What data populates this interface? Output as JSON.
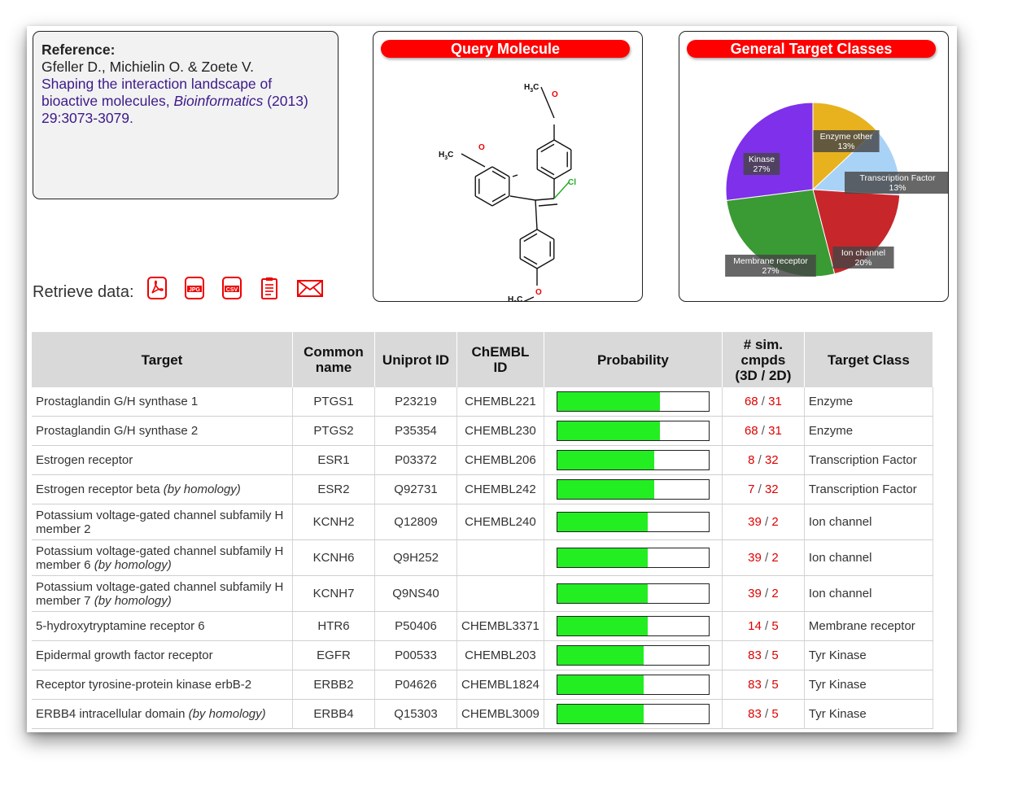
{
  "reference": {
    "heading": "Reference:",
    "authors": "Gfeller D., Michielin O. & Zoete V.",
    "title": "Shaping the interaction landscape of bioactive molecules,",
    "journal": "Bioinformatics",
    "year": "(2013)",
    "pages": "29:3073-3079."
  },
  "query_molecule": {
    "title": "Query Molecule",
    "atoms": {
      "methyl_top": "H",
      "methyl_left": "H",
      "methyl_bottom": "H",
      "oxygen": "O",
      "chlorine": "Cl",
      "sub3": "3",
      "c": "C"
    }
  },
  "target_classes": {
    "title": "General Target Classes",
    "slices": [
      {
        "name": "Enzyme other",
        "pct": "13%",
        "value": 13,
        "color": "#e8b21e"
      },
      {
        "name": "Transcription Factor",
        "pct": "13%",
        "value": 13,
        "color": "#a9d2f7"
      },
      {
        "name": "Ion channel",
        "pct": "20%",
        "value": 20,
        "color": "#c7262b"
      },
      {
        "name": "Membrane receptor",
        "pct": "27%",
        "value": 27,
        "color": "#3a9a33"
      },
      {
        "name": "Kinase",
        "pct": "27%",
        "value": 27,
        "color": "#7f30ea"
      }
    ]
  },
  "retrieve": {
    "label": "Retrieve data:",
    "icons": [
      "pdf-icon",
      "jpg-icon",
      "csv-icon",
      "clipboard-icon",
      "email-icon"
    ],
    "jpg_text": "JPG",
    "csv_text": "CSV"
  },
  "table": {
    "headers": {
      "target": "Target",
      "common1": "Common",
      "common2": "name",
      "uniprot": "Uniprot ID",
      "chembl1": "ChEMBL",
      "chembl2": "ID",
      "prob": "Probability",
      "sim1": "# sim.",
      "sim2": "cmpds",
      "sim3": "(3D / 2D)",
      "tclass": "Target Class"
    },
    "rows": [
      {
        "target": "Prostaglandin G/H synthase 1",
        "target2": "",
        "homology": "",
        "common": "PTGS1",
        "uniprot": "P23219",
        "chembl": "CHEMBL221",
        "prob": 0.68,
        "s3d": "68",
        "s2d": "31",
        "tclass": "Enzyme"
      },
      {
        "target": "Prostaglandin G/H synthase 2",
        "target2": "",
        "homology": "",
        "common": "PTGS2",
        "uniprot": "P35354",
        "chembl": "CHEMBL230",
        "prob": 0.68,
        "s3d": "68",
        "s2d": "31",
        "tclass": "Enzyme"
      },
      {
        "target": "Estrogen receptor",
        "target2": "",
        "homology": "",
        "common": "ESR1",
        "uniprot": "P03372",
        "chembl": "CHEMBL206",
        "prob": 0.64,
        "s3d": "8",
        "s2d": "32",
        "tclass": "Transcription Factor"
      },
      {
        "target": "Estrogen receptor beta",
        "target2": "",
        "homology": "(by homology)",
        "common": "ESR2",
        "uniprot": "Q92731",
        "chembl": "CHEMBL242",
        "prob": 0.64,
        "s3d": "7",
        "s2d": "32",
        "tclass": "Transcription Factor"
      },
      {
        "target": "Potassium voltage-gated channel subfamily H",
        "target2": "member 2",
        "homology": "",
        "common": "KCNH2",
        "uniprot": "Q12809",
        "chembl": "CHEMBL240",
        "prob": 0.6,
        "s3d": "39",
        "s2d": "2",
        "tclass": "Ion channel"
      },
      {
        "target": "Potassium voltage-gated channel subfamily H",
        "target2": "member 6",
        "homology": "(by homology)",
        "common": "KCNH6",
        "uniprot": "Q9H252",
        "chembl": "",
        "prob": 0.6,
        "s3d": "39",
        "s2d": "2",
        "tclass": "Ion channel"
      },
      {
        "target": "Potassium voltage-gated channel subfamily H",
        "target2": "member 7",
        "homology": "(by homology)",
        "common": "KCNH7",
        "uniprot": "Q9NS40",
        "chembl": "",
        "prob": 0.6,
        "s3d": "39",
        "s2d": "2",
        "tclass": "Ion channel"
      },
      {
        "target": "5-hydroxytryptamine receptor 6",
        "target2": "",
        "homology": "",
        "common": "HTR6",
        "uniprot": "P50406",
        "chembl": "CHEMBL3371",
        "prob": 0.6,
        "s3d": "14",
        "s2d": "5",
        "tclass": "Membrane receptor"
      },
      {
        "target": "Epidermal growth factor receptor",
        "target2": "",
        "homology": "",
        "common": "EGFR",
        "uniprot": "P00533",
        "chembl": "CHEMBL203",
        "prob": 0.57,
        "s3d": "83",
        "s2d": "5",
        "tclass": "Tyr Kinase"
      },
      {
        "target": "Receptor tyrosine-protein kinase erbB-2",
        "target2": "",
        "homology": "",
        "common": "ERBB2",
        "uniprot": "P04626",
        "chembl": "CHEMBL1824",
        "prob": 0.57,
        "s3d": "83",
        "s2d": "5",
        "tclass": "Tyr Kinase"
      },
      {
        "target": "ERBB4 intracellular domain",
        "target2": "",
        "homology": "(by homology)",
        "common": "ERBB4",
        "uniprot": "Q15303",
        "chembl": "CHEMBL3009",
        "prob": 0.57,
        "s3d": "83",
        "s2d": "5",
        "tclass": "Tyr Kinase"
      }
    ]
  }
}
